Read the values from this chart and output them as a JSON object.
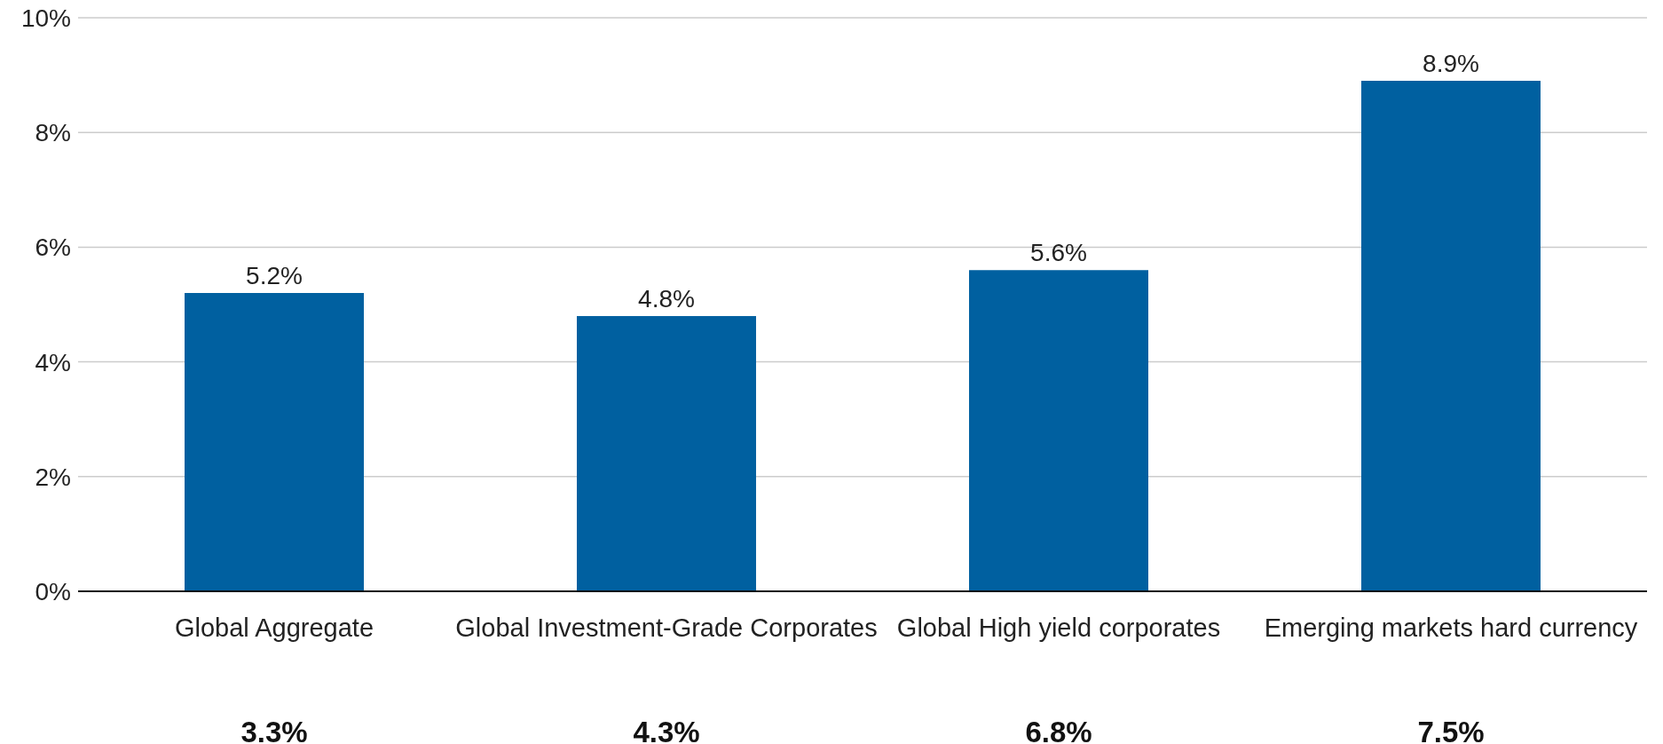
{
  "chart_data": {
    "type": "bar",
    "categories": [
      "Global Aggregate",
      "Global Investment-Grade Corporates",
      "Global High yield corporates",
      "Emerging markets hard currency"
    ],
    "values": [
      5.2,
      4.8,
      5.6,
      8.9
    ],
    "value_labels": [
      "5.2%",
      "4.8%",
      "5.6%",
      "8.9%"
    ],
    "color": "#0060a0",
    "ylim": [
      0,
      10
    ],
    "yticks": [
      {
        "value": 0,
        "label": "0%"
      },
      {
        "value": 2,
        "label": "2%"
      },
      {
        "value": 4,
        "label": "4%"
      },
      {
        "value": 6,
        "label": "6%"
      },
      {
        "value": 8,
        "label": "8%"
      },
      {
        "value": 10,
        "label": "10%"
      }
    ],
    "grid": "y",
    "annotations": [
      "3.3%",
      "4.3%",
      "6.8%",
      "7.5%"
    ]
  }
}
